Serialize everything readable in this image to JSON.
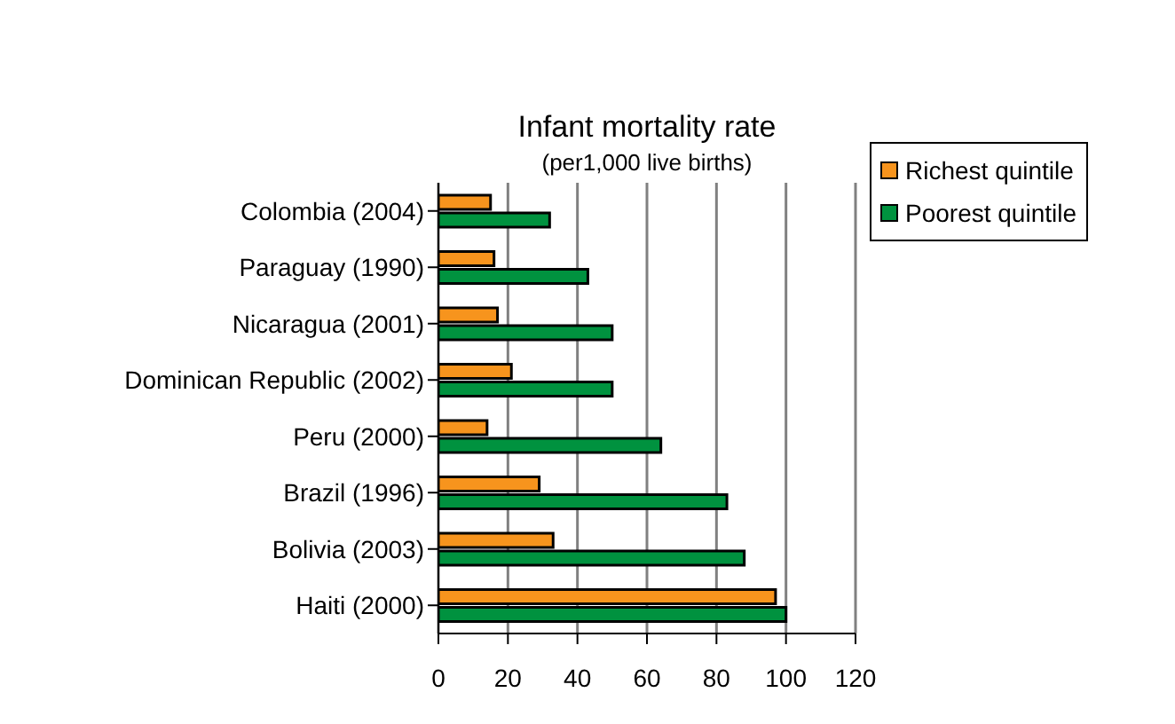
{
  "chart_data": {
    "type": "bar",
    "orientation": "horizontal",
    "title": "Infant mortality rate",
    "subtitle": "(per1,000 live births)",
    "categories": [
      "Colombia (2004)",
      "Paraguay (1990)",
      "Nicaragua (2001)",
      "Dominican Republic (2002)",
      "Peru (2000)",
      "Brazil (1996)",
      "Bolivia (2003)",
      "Haiti (2000)"
    ],
    "series": [
      {
        "name": "Richest quintile",
        "color": "#f7941d",
        "values": [
          15,
          16,
          17,
          21,
          14,
          29,
          33,
          97
        ]
      },
      {
        "name": "Poorest quintile",
        "color": "#00923f",
        "values": [
          32,
          43,
          50,
          50,
          64,
          83,
          88,
          100
        ]
      }
    ],
    "xlim": [
      0,
      120
    ],
    "xticks": [
      0,
      20,
      40,
      60,
      80,
      100,
      120
    ],
    "grid": "x",
    "legend": "top right"
  }
}
